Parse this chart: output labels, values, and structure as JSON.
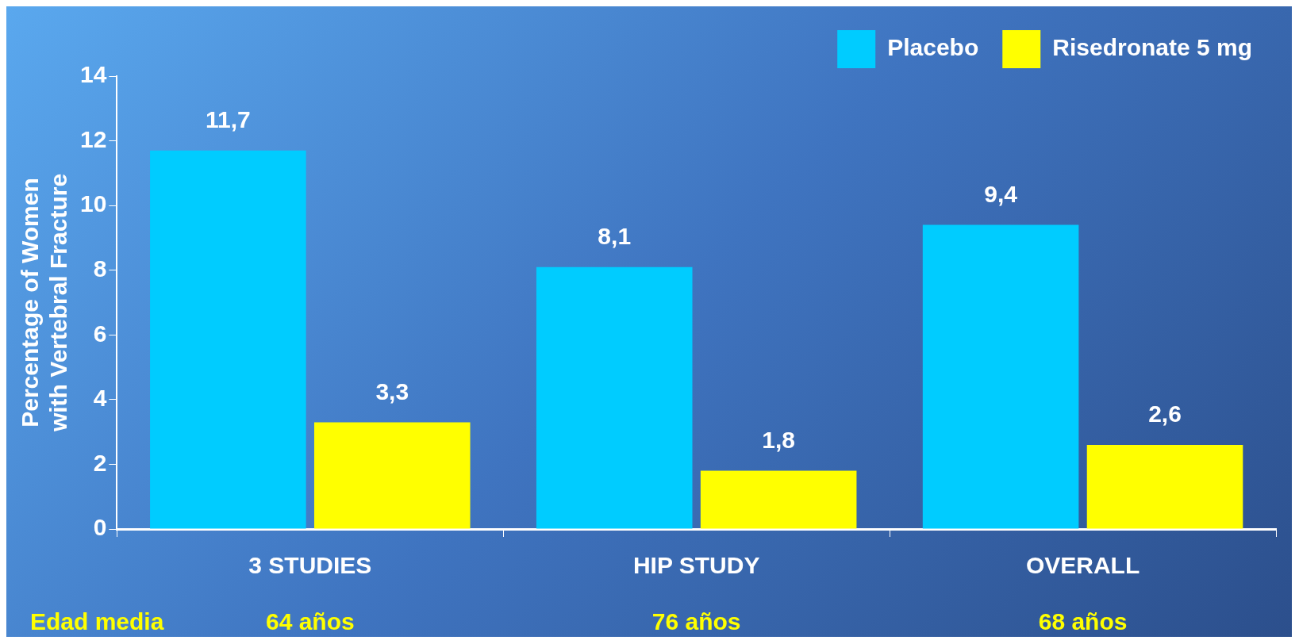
{
  "chart_data": {
    "type": "bar",
    "ylabel": "Percentage of Women\nwith Vertebral Fracture",
    "categories": [
      "3 STUDIES",
      "HIP STUDY",
      "OVERALL"
    ],
    "series": [
      {
        "name": "Placebo",
        "color": "#00ccff",
        "values": [
          11.7,
          8.1,
          9.4
        ],
        "value_labels": [
          "11,7",
          "8,1",
          "9,4"
        ]
      },
      {
        "name": "Risedronate 5 mg",
        "color": "#ffff00",
        "values": [
          3.3,
          1.8,
          2.6
        ],
        "value_labels": [
          "3,3",
          "1,8",
          "2,6"
        ]
      }
    ],
    "ylim": [
      0,
      14
    ],
    "yticks": [
      0,
      2,
      4,
      6,
      8,
      10,
      12,
      14
    ],
    "legend": "top right",
    "annotations": [
      "Edad media",
      "64 años",
      "76 años",
      "68 años"
    ]
  }
}
